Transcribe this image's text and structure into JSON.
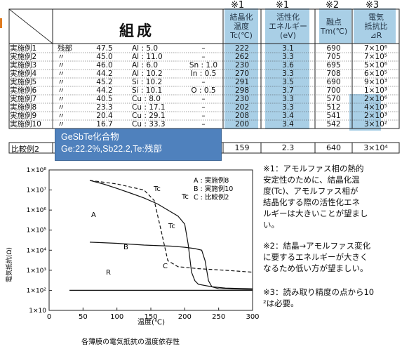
{
  "table": {
    "marks": {
      "m1a": "※1",
      "m1b": "※1",
      "m2": "※2",
      "m3": "※3"
    },
    "title": "組成",
    "headers": {
      "tc": [
        "結晶化",
        "温度",
        "Tc(℃)"
      ],
      "ea": [
        "活性化",
        "エネルギー",
        "(eV)"
      ],
      "tm": [
        "融点",
        "Tm(℃)"
      ],
      "r": [
        "電気",
        "抵抗比",
        "⊿R"
      ]
    },
    "rows": [
      {
        "name": "実施例1",
        "c1": "残部",
        "c2": "47.5",
        "c3": "Al : 5.0",
        "c4": "–",
        "tc": "222",
        "ea": "3.1",
        "tm": "690",
        "r": "7×10⁶"
      },
      {
        "name": "実施例2",
        "c1": "〃",
        "c2": "45.0",
        "c3": "Al : 11.0",
        "c4": "–",
        "tc": "262",
        "ea": "3.3",
        "tm": "705",
        "r": "7×10⁵"
      },
      {
        "name": "実施例3",
        "c1": "〃",
        "c2": "46.0",
        "c3": "Al : 6.0",
        "c4": "Sn : 1.0",
        "tc": "230",
        "ea": "3.6",
        "tm": "695",
        "r": "5×10⁶"
      },
      {
        "name": "実施例4",
        "c1": "〃",
        "c2": "44.2",
        "c3": "Al : 10.2",
        "c4": "In : 0.5",
        "tc": "270",
        "ea": "3.3",
        "tm": "708",
        "r": "6×10⁵"
      },
      {
        "name": "実施例5",
        "c1": "〃",
        "c2": "45.2",
        "c3": "Si : 10.2",
        "c4": "–",
        "tc": "291",
        "ea": "3.5",
        "tm": "690",
        "r": "9×10³"
      },
      {
        "name": "実施例6",
        "c1": "〃",
        "c2": "44.2",
        "c3": "Si : 10.1",
        "c4": "O : 0.5",
        "tc": "298",
        "ea": "3.7",
        "tm": "700",
        "r": "1×10³"
      },
      {
        "name": "実施例7",
        "c1": "〃",
        "c2": "40.5",
        "c3": "Cu : 8.0",
        "c4": "–",
        "tc": "230",
        "ea": "3.3",
        "tm": "570",
        "r": "2×10⁶"
      },
      {
        "name": "実施例8",
        "c1": "〃",
        "c2": "23.3",
        "c3": "Cu : 17.1",
        "c4": "–",
        "tc": "202",
        "ea": "3.3",
        "tm": "512",
        "r": "4×10⁵"
      },
      {
        "name": "実施例9",
        "c1": "〃",
        "c2": "20.4",
        "c3": "Cu : 29.1",
        "c4": "–",
        "tc": "208",
        "ea": "3.4",
        "tm": "541",
        "r": "2×10³"
      },
      {
        "name": "実施例10",
        "c1": "〃",
        "c2": "16.7",
        "c3": "Cu : 33.3",
        "c4": "–",
        "tc": "200",
        "ea": "3.4",
        "tm": "542",
        "r": "3×10²"
      }
    ],
    "comparison": {
      "name": "比較例2",
      "tc": "159",
      "ea": "2.3",
      "tm": "640",
      "r": "3×10⁴"
    }
  },
  "callout": {
    "line1": "GeSbTe化合物",
    "line2": "Ge:22.2%,Sb22.2,Te:残部"
  },
  "chart": {
    "ylabel": "電気抵抗(Ω)",
    "xlabel": "温度(℃)",
    "caption": "各薄膜の電気抵抗の温度依存性",
    "legend": [
      "A : 実施例8",
      "B : 実施例10",
      "C : 比較例2"
    ],
    "annotations": {
      "tc1": "Tc",
      "tc2": "Tc",
      "tc3": "Tc",
      "a": "A",
      "b": "B",
      "c": "C",
      "r": "R"
    }
  },
  "chart_data": {
    "type": "line",
    "title": "",
    "xlabel": "温度(℃)",
    "ylabel": "電気抵抗(Ω)",
    "xlim": [
      0,
      300
    ],
    "ylim": [
      10,
      100000000
    ],
    "y_scale": "log",
    "x_ticks": [
      "0",
      "50",
      "100",
      "150",
      "200",
      "250",
      "300"
    ],
    "y_ticks": [
      "1×10",
      "1×10²",
      "1×10³",
      "1×10⁴",
      "1×10⁵",
      "1×10⁶",
      "1×10⁷",
      "1×10⁸"
    ],
    "series": [
      {
        "name": "A : 実施例8",
        "style": "solid",
        "x": [
          60,
          80,
          100,
          120,
          140,
          160,
          175,
          190,
          200,
          205,
          210,
          215,
          220,
          240,
          260,
          300
        ],
        "y": [
          30000000,
          20000000,
          12000000,
          7000000,
          4000000,
          2000000,
          1000000,
          500000,
          200000,
          20000,
          800,
          300,
          200,
          150,
          130,
          120
        ]
      },
      {
        "name": "B : 実施例10",
        "style": "solid",
        "x": [
          60,
          100,
          140,
          180,
          200,
          215,
          225,
          230,
          235,
          240,
          250,
          300
        ],
        "y": [
          25000,
          22000,
          18000,
          16000,
          14000,
          12000,
          10000,
          3000,
          300,
          150,
          120,
          110
        ]
      },
      {
        "name": "C : 比較例2",
        "style": "dashed",
        "x": [
          60,
          100,
          140,
          155,
          165,
          175,
          190,
          220,
          260,
          300
        ],
        "y": [
          30000000,
          20000000,
          10000000,
          3000000,
          100000,
          3000,
          1500,
          1200,
          1000,
          800
        ]
      },
      {
        "name": "",
        "style": "solid",
        "x": [
          30,
          300
        ],
        "y": [
          100,
          100
        ]
      }
    ]
  },
  "notes": {
    "n1": [
      "※1：アモルファス相の熱的",
      "安定性のために、結晶化温",
      "度(Tc)、アモルファス相が",
      "結晶化する際の活性化エネ",
      "ルギーは大きいことが望まし",
      "い。"
    ],
    "n2": [
      "※2：結晶→アモルファス変化",
      "に要するエネルギーが大きく",
      "なるため低い方が望ましい。"
    ],
    "n3": [
      "※3：読み取り精度の点から10",
      "²は必要。"
    ]
  }
}
